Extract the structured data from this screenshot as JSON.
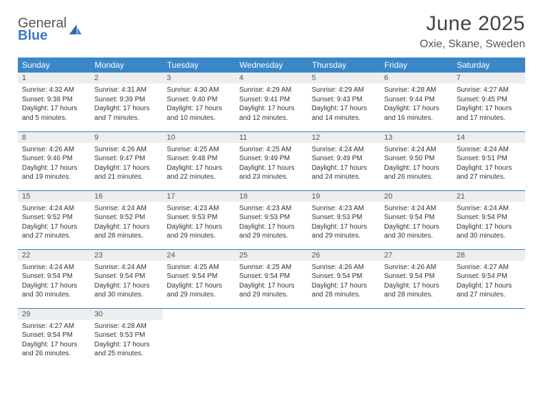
{
  "brand": {
    "line1": "General",
    "line2": "Blue"
  },
  "title": "June 2025",
  "location": "Oxie, Skane, Sweden",
  "colors": {
    "header_bg": "#3a87c8",
    "header_text": "#ffffff",
    "daynum_bg": "#eceeef",
    "rule": "#3a7bbf",
    "title_color": "#444444",
    "body_text": "#333333"
  },
  "weekdays": [
    "Sunday",
    "Monday",
    "Tuesday",
    "Wednesday",
    "Thursday",
    "Friday",
    "Saturday"
  ],
  "days": {
    "1": {
      "sunrise": "4:32 AM",
      "sunset": "9:38 PM",
      "daylight": "17 hours and 5 minutes."
    },
    "2": {
      "sunrise": "4:31 AM",
      "sunset": "9:39 PM",
      "daylight": "17 hours and 7 minutes."
    },
    "3": {
      "sunrise": "4:30 AM",
      "sunset": "9:40 PM",
      "daylight": "17 hours and 10 minutes."
    },
    "4": {
      "sunrise": "4:29 AM",
      "sunset": "9:41 PM",
      "daylight": "17 hours and 12 minutes."
    },
    "5": {
      "sunrise": "4:29 AM",
      "sunset": "9:43 PM",
      "daylight": "17 hours and 14 minutes."
    },
    "6": {
      "sunrise": "4:28 AM",
      "sunset": "9:44 PM",
      "daylight": "17 hours and 16 minutes."
    },
    "7": {
      "sunrise": "4:27 AM",
      "sunset": "9:45 PM",
      "daylight": "17 hours and 17 minutes."
    },
    "8": {
      "sunrise": "4:26 AM",
      "sunset": "9:46 PM",
      "daylight": "17 hours and 19 minutes."
    },
    "9": {
      "sunrise": "4:26 AM",
      "sunset": "9:47 PM",
      "daylight": "17 hours and 21 minutes."
    },
    "10": {
      "sunrise": "4:25 AM",
      "sunset": "9:48 PM",
      "daylight": "17 hours and 22 minutes."
    },
    "11": {
      "sunrise": "4:25 AM",
      "sunset": "9:49 PM",
      "daylight": "17 hours and 23 minutes."
    },
    "12": {
      "sunrise": "4:24 AM",
      "sunset": "9:49 PM",
      "daylight": "17 hours and 24 minutes."
    },
    "13": {
      "sunrise": "4:24 AM",
      "sunset": "9:50 PM",
      "daylight": "17 hours and 26 minutes."
    },
    "14": {
      "sunrise": "4:24 AM",
      "sunset": "9:51 PM",
      "daylight": "17 hours and 27 minutes."
    },
    "15": {
      "sunrise": "4:24 AM",
      "sunset": "9:52 PM",
      "daylight": "17 hours and 27 minutes."
    },
    "16": {
      "sunrise": "4:24 AM",
      "sunset": "9:52 PM",
      "daylight": "17 hours and 28 minutes."
    },
    "17": {
      "sunrise": "4:23 AM",
      "sunset": "9:53 PM",
      "daylight": "17 hours and 29 minutes."
    },
    "18": {
      "sunrise": "4:23 AM",
      "sunset": "9:53 PM",
      "daylight": "17 hours and 29 minutes."
    },
    "19": {
      "sunrise": "4:23 AM",
      "sunset": "9:53 PM",
      "daylight": "17 hours and 29 minutes."
    },
    "20": {
      "sunrise": "4:24 AM",
      "sunset": "9:54 PM",
      "daylight": "17 hours and 30 minutes."
    },
    "21": {
      "sunrise": "4:24 AM",
      "sunset": "9:54 PM",
      "daylight": "17 hours and 30 minutes."
    },
    "22": {
      "sunrise": "4:24 AM",
      "sunset": "9:54 PM",
      "daylight": "17 hours and 30 minutes."
    },
    "23": {
      "sunrise": "4:24 AM",
      "sunset": "9:54 PM",
      "daylight": "17 hours and 30 minutes."
    },
    "24": {
      "sunrise": "4:25 AM",
      "sunset": "9:54 PM",
      "daylight": "17 hours and 29 minutes."
    },
    "25": {
      "sunrise": "4:25 AM",
      "sunset": "9:54 PM",
      "daylight": "17 hours and 29 minutes."
    },
    "26": {
      "sunrise": "4:26 AM",
      "sunset": "9:54 PM",
      "daylight": "17 hours and 28 minutes."
    },
    "27": {
      "sunrise": "4:26 AM",
      "sunset": "9:54 PM",
      "daylight": "17 hours and 28 minutes."
    },
    "28": {
      "sunrise": "4:27 AM",
      "sunset": "9:54 PM",
      "daylight": "17 hours and 27 minutes."
    },
    "29": {
      "sunrise": "4:27 AM",
      "sunset": "9:54 PM",
      "daylight": "17 hours and 26 minutes."
    },
    "30": {
      "sunrise": "4:28 AM",
      "sunset": "9:53 PM",
      "daylight": "17 hours and 25 minutes."
    }
  },
  "labels": {
    "sunrise": "Sunrise: ",
    "sunset": "Sunset: ",
    "daylight": "Daylight: "
  },
  "layout": {
    "first_weekday_index": 0,
    "days_in_month": 30,
    "columns": 7,
    "rows": 5
  }
}
